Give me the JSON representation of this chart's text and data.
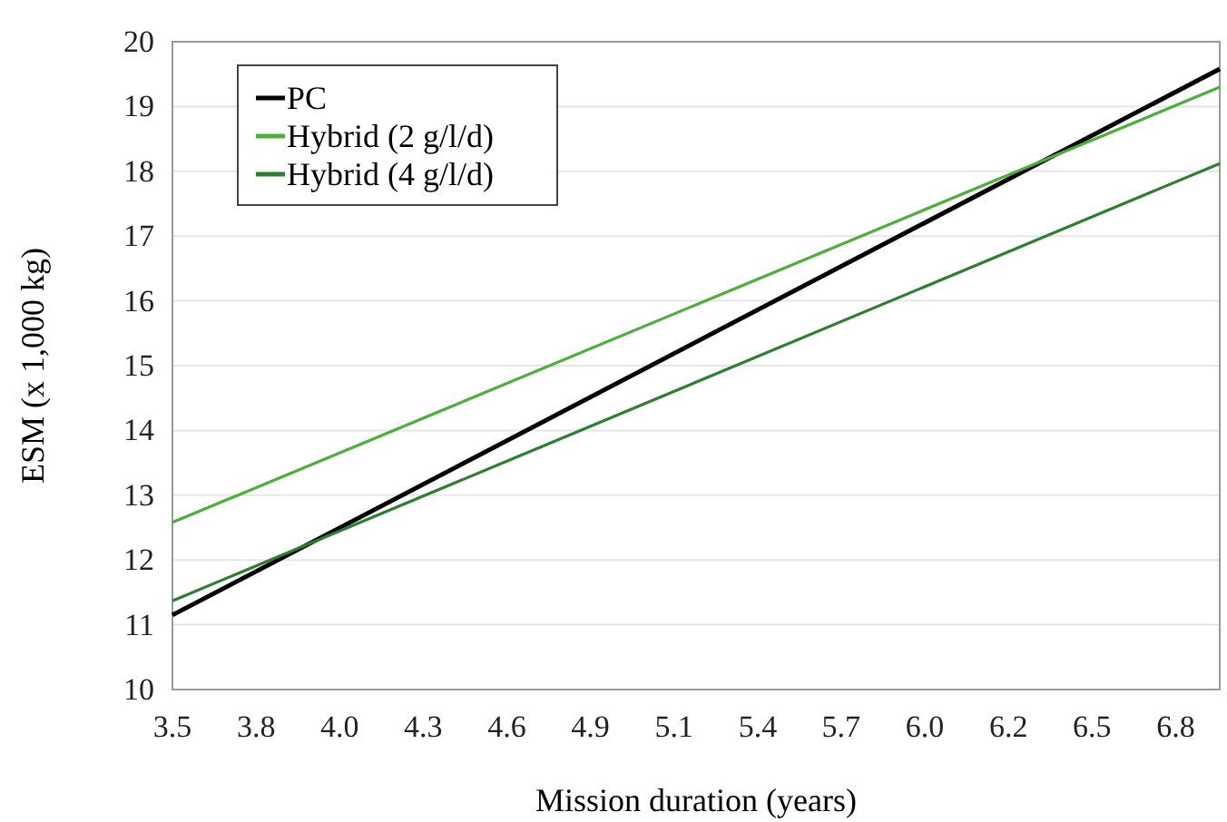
{
  "chart_data": {
    "type": "line",
    "xlabel": "Mission duration (years)",
    "ylabel": "ESM (x 1,000 kg)",
    "x": [
      3.5,
      6.93
    ],
    "series": [
      {
        "name": "PC",
        "color": "#000000",
        "values": [
          11.15,
          19.58
        ]
      },
      {
        "name": "Hybrid (2 g/l/d)",
        "color": "#4caf3c",
        "values": [
          12.58,
          19.3
        ]
      },
      {
        "name": "Hybrid (4 g/l/d)",
        "color": "#2e7d32",
        "values": [
          11.37,
          18.12
        ]
      }
    ],
    "xlim": [
      3.5,
      6.93
    ],
    "xticks": [
      {
        "value": 3.5,
        "label": "3.5"
      },
      {
        "value": 3.774,
        "label": "3.8"
      },
      {
        "value": 4.048,
        "label": "4.0"
      },
      {
        "value": 4.321,
        "label": "4.3"
      },
      {
        "value": 4.595,
        "label": "4.6"
      },
      {
        "value": 4.869,
        "label": "4.9"
      },
      {
        "value": 5.143,
        "label": "5.1"
      },
      {
        "value": 5.417,
        "label": "5.4"
      },
      {
        "value": 5.69,
        "label": "5.7"
      },
      {
        "value": 5.964,
        "label": "6.0"
      },
      {
        "value": 6.238,
        "label": "6.2"
      },
      {
        "value": 6.512,
        "label": "6.5"
      },
      {
        "value": 6.786,
        "label": "6.8"
      }
    ],
    "ylim": [
      10,
      20
    ],
    "yticks": [
      10,
      11,
      12,
      13,
      14,
      15,
      16,
      17,
      18,
      19,
      20
    ],
    "grid": "y",
    "legend": "top left",
    "marker": "none",
    "line_style": "solid"
  }
}
